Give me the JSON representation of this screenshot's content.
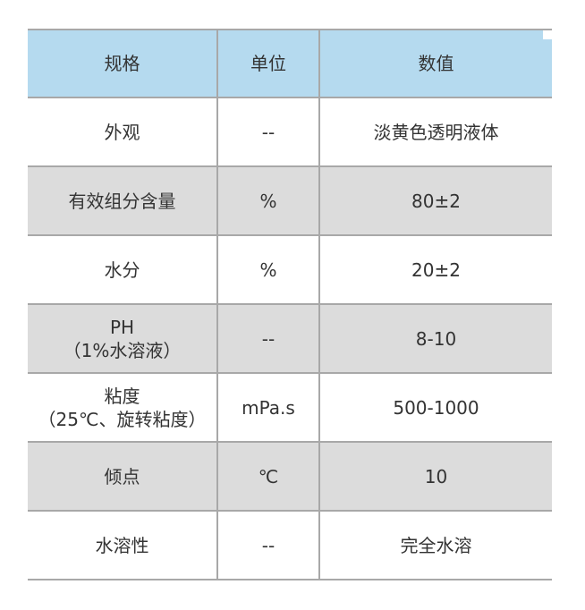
{
  "headers": [
    "规格",
    "单位",
    "数值"
  ],
  "rows": [
    {
      "spec": "外观",
      "spec_sub": "",
      "unit": "--",
      "value": "淡黄色透明液体"
    },
    {
      "spec": "有效组分含量",
      "spec_sub": "",
      "unit": "%",
      "value": "80±2"
    },
    {
      "spec": "水分",
      "spec_sub": "",
      "unit": "%",
      "value": "20±2"
    },
    {
      "spec": "PH",
      "spec_sub": "（1%水溶液）",
      "unit": "--",
      "value": "8-10"
    },
    {
      "spec": "粘度",
      "spec_sub": "（25℃、旋转粘度）",
      "unit": "mPa.s",
      "value": "500-1000"
    },
    {
      "spec": "倾点",
      "spec_sub": "",
      "unit": "℃",
      "value": "10"
    },
    {
      "spec": "水溶性",
      "spec_sub": "",
      "unit": "--",
      "value": "完全水溶"
    }
  ],
  "colors": {
    "header_bg": "#b5daef",
    "alt_row_bg": "#dcdcdc",
    "border": "#a8a8a8"
  }
}
